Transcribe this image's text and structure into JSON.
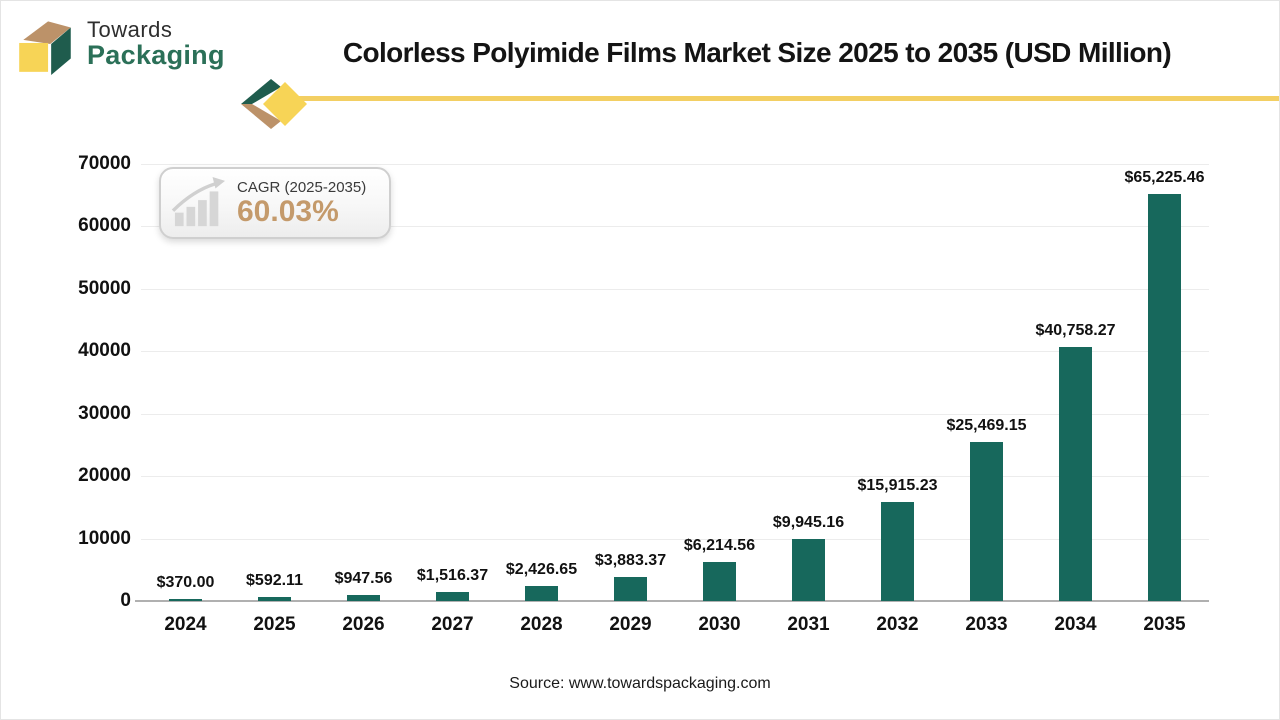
{
  "header": {
    "logo": {
      "line1": "Towards",
      "line2": "Packaging"
    },
    "title": "Colorless Polyimide Films Market Size 2025 to 2035 (USD Million)"
  },
  "cagr_badge": {
    "label": "CAGR (2025-2035)",
    "value": "60.03%",
    "icon": "growth-trend-bar-chart-icon"
  },
  "source": "Source: www.towardspackaging.com",
  "colors": {
    "bar_green": "#17685C",
    "logo_face_green": "#1F5C4D",
    "logo_text_green": "#2B7058",
    "logo_tan": "#BC9269",
    "logo_yellow": "#F7D456",
    "divider_yellow": "#F3CF63",
    "cagr_gold": "#C49A6B",
    "grid_gray": "#ECECEC",
    "axis_gray": "#B0B0B0",
    "title_black": "#141414"
  },
  "chart_data": {
    "type": "bar",
    "title": "Colorless Polyimide Films Market Size 2025 to 2035 (USD Million)",
    "unit": "USD Million",
    "categories": [
      "2024",
      "2025",
      "2026",
      "2027",
      "2028",
      "2029",
      "2030",
      "2031",
      "2032",
      "2033",
      "2034",
      "2035"
    ],
    "values": [
      370.0,
      592.11,
      947.56,
      1516.37,
      2426.65,
      3883.37,
      6214.56,
      9945.16,
      15915.23,
      25469.15,
      40758.27,
      65225.46
    ],
    "value_labels": [
      "$370.00",
      "$592.11",
      "$947.56",
      "$1,516.37",
      "$2,426.65",
      "$3,883.37",
      "$6,214.56",
      "$9,945.16",
      "$15,915.23",
      "$25,469.15",
      "$40,758.27",
      "$65,225.46"
    ],
    "xlabel": "",
    "ylabel": "",
    "ylim": [
      0,
      70000
    ],
    "yticks": [
      0,
      10000,
      20000,
      30000,
      40000,
      50000,
      60000,
      70000
    ],
    "grid": true,
    "legend": "none",
    "bar_color": "#17685C"
  }
}
